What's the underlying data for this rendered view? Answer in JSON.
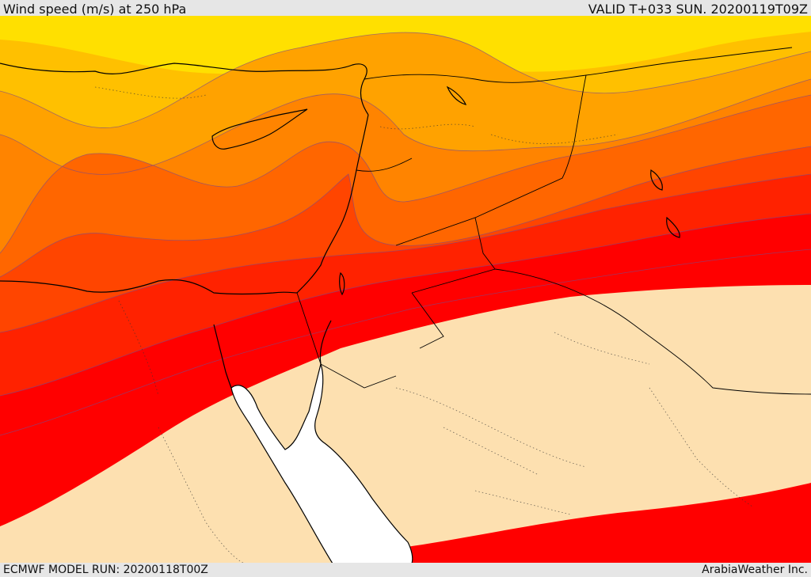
{
  "header": {
    "title": "Wind speed (m/s) at 250 hPa",
    "valid_time": "VALID T+033 SUN. 20200119T09Z"
  },
  "footer": {
    "model_run": "ECMWF MODEL RUN: 20200118T00Z",
    "credit": "ArabiaWeather Inc."
  },
  "map": {
    "variable": "wind speed",
    "units": "m/s",
    "pressure_level": "250 hPa",
    "colors": {
      "band_1": "#ffe000",
      "band_2": "#ffc000",
      "band_3": "#ffa200",
      "band_4": "#ff8400",
      "band_5": "#ff6600",
      "band_6": "#ff4500",
      "band_7": "#ff2200",
      "band_8": "#ff0000",
      "below_threshold": "#fde0b0",
      "sea": "#ffffff",
      "coastline": "#000000"
    }
  }
}
